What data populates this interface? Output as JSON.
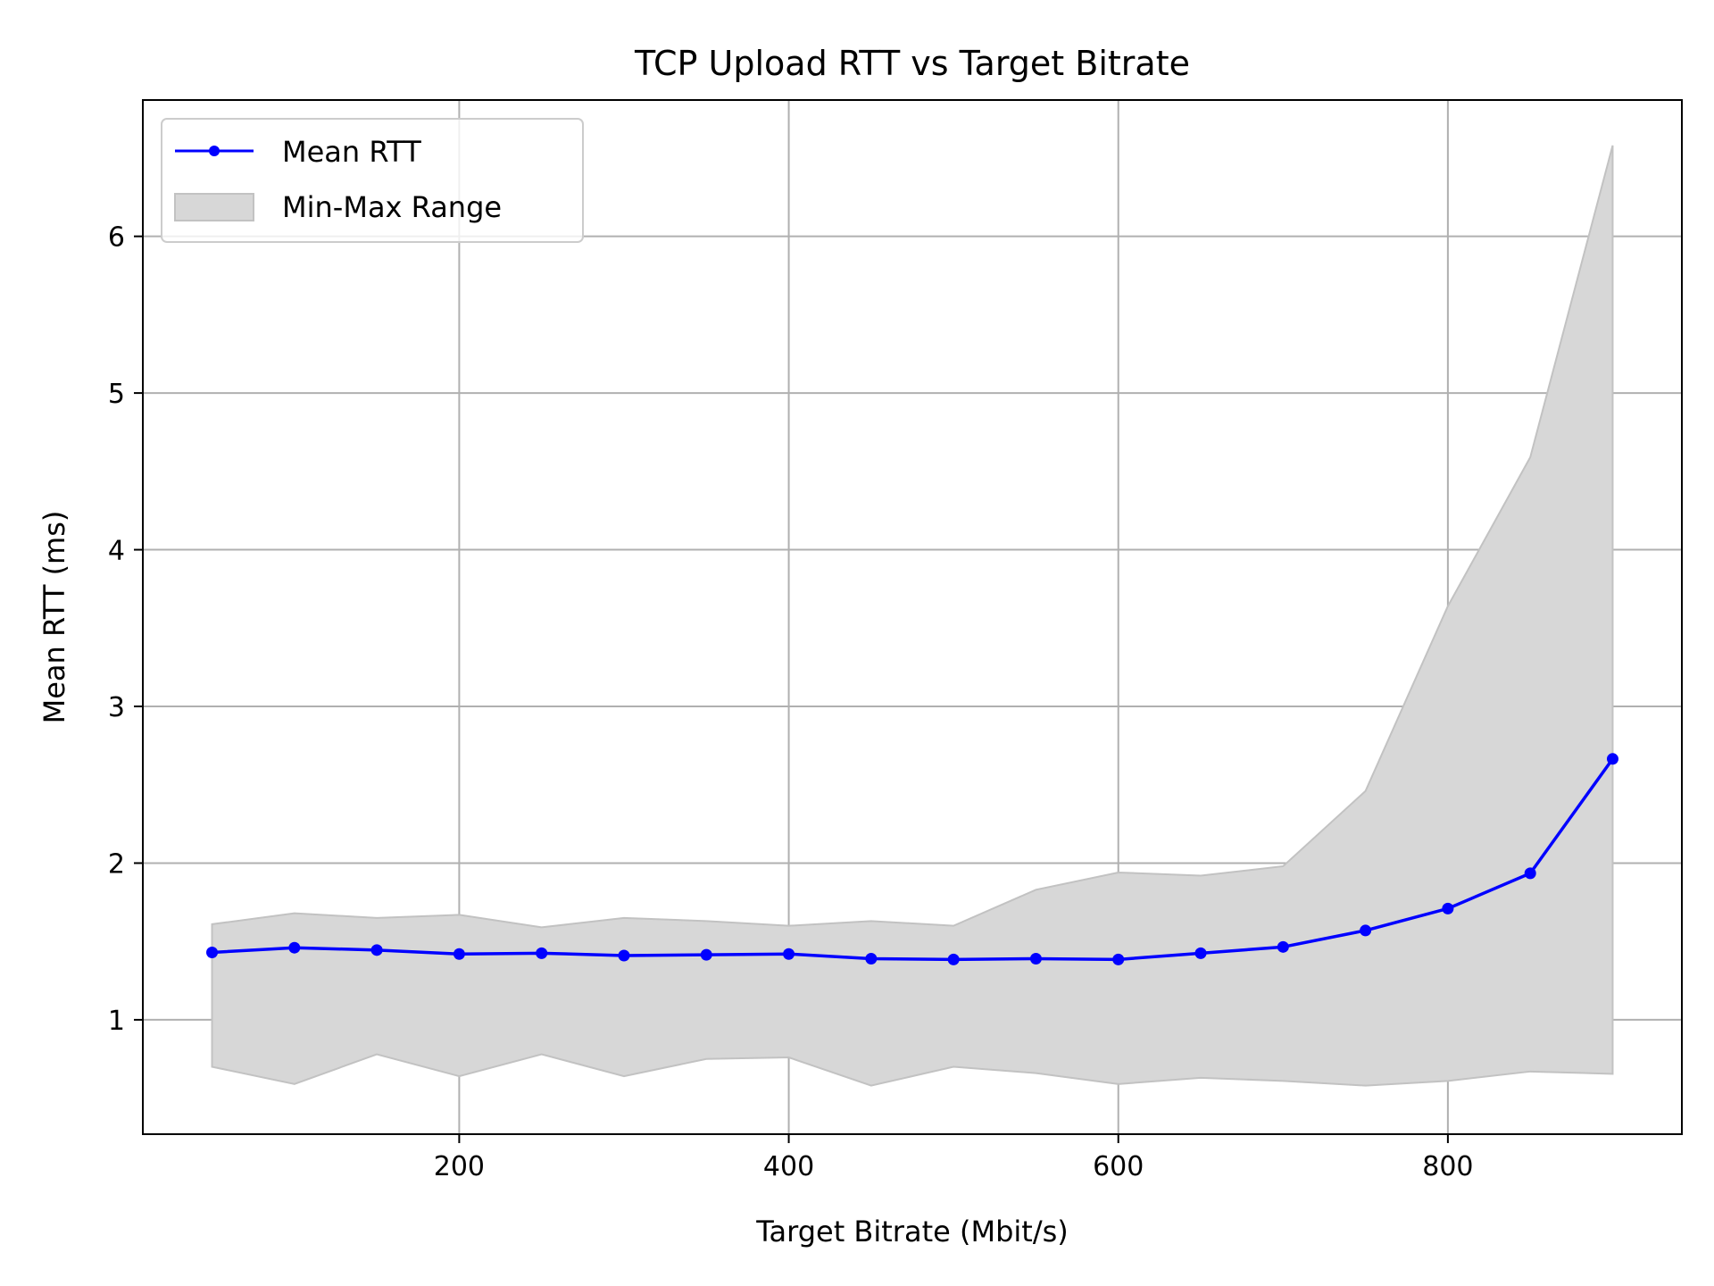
{
  "chart_data": {
    "type": "line",
    "title": "TCP Upload RTT vs Target Bitrate",
    "xlabel": "Target Bitrate (Mbit/s)",
    "ylabel": "Mean RTT (ms)",
    "xlim": [
      8,
      942
    ],
    "ylim": [
      0.27,
      6.87
    ],
    "xticks": [
      200,
      400,
      600,
      800
    ],
    "yticks": [
      1,
      2,
      3,
      4,
      5,
      6
    ],
    "grid": true,
    "legend_position": "top-left",
    "x": [
      50,
      100,
      150,
      200,
      250,
      300,
      350,
      400,
      450,
      500,
      550,
      600,
      650,
      700,
      750,
      800,
      850,
      900
    ],
    "series": [
      {
        "name": "Mean RTT",
        "type": "line",
        "color": "#0000ff",
        "values": [
          1.43,
          1.46,
          1.445,
          1.42,
          1.425,
          1.41,
          1.415,
          1.42,
          1.39,
          1.385,
          1.39,
          1.385,
          1.425,
          1.465,
          1.57,
          1.71,
          1.935,
          2.665
        ]
      },
      {
        "name": "Min-Max Range",
        "type": "band",
        "color": "#d7d7d7",
        "edge_color": "#c2c2c2",
        "min": [
          0.7,
          0.59,
          0.78,
          0.64,
          0.78,
          0.64,
          0.75,
          0.76,
          0.58,
          0.7,
          0.66,
          0.59,
          0.63,
          0.61,
          0.58,
          0.61,
          0.67,
          0.655
        ],
        "max": [
          1.61,
          1.68,
          1.65,
          1.67,
          1.59,
          1.65,
          1.63,
          1.6,
          1.63,
          1.6,
          1.83,
          1.94,
          1.92,
          1.98,
          2.46,
          3.64,
          4.59,
          6.58
        ]
      }
    ]
  }
}
